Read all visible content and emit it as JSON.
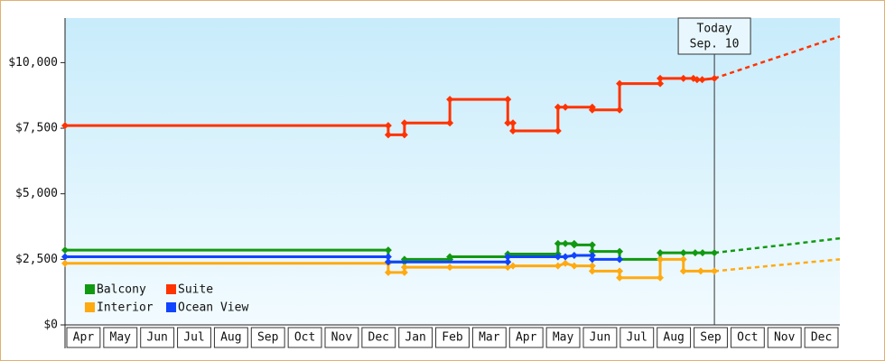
{
  "chart_data": {
    "type": "line",
    "xlim": [
      0,
      21
    ],
    "xticks": [
      {
        "value": 0.5,
        "label": "Apr"
      },
      {
        "value": 1.5,
        "label": "May"
      },
      {
        "value": 2.5,
        "label": "Jun"
      },
      {
        "value": 3.5,
        "label": "Jul"
      },
      {
        "value": 4.5,
        "label": "Aug"
      },
      {
        "value": 5.5,
        "label": "Sep"
      },
      {
        "value": 6.5,
        "label": "Oct"
      },
      {
        "value": 7.5,
        "label": "Nov"
      },
      {
        "value": 8.5,
        "label": "Dec"
      },
      {
        "value": 9.5,
        "label": "Jan"
      },
      {
        "value": 10.5,
        "label": "Feb"
      },
      {
        "value": 11.5,
        "label": "Mar"
      },
      {
        "value": 12.5,
        "label": "Apr"
      },
      {
        "value": 13.5,
        "label": "May"
      },
      {
        "value": 14.5,
        "label": "Jun"
      },
      {
        "value": 15.5,
        "label": "Jul"
      },
      {
        "value": 16.5,
        "label": "Aug"
      },
      {
        "value": 17.5,
        "label": "Sep"
      },
      {
        "value": 18.5,
        "label": "Oct"
      },
      {
        "value": 19.5,
        "label": "Nov"
      },
      {
        "value": 20.5,
        "label": "Dec"
      }
    ],
    "ylim": [
      0,
      11700
    ],
    "yticks": [
      {
        "value": 0,
        "label": "$0"
      },
      {
        "value": 2500,
        "label": "$2,500"
      },
      {
        "value": 5000,
        "label": "$5,000"
      },
      {
        "value": 7500,
        "label": "$7,500"
      },
      {
        "value": 10000,
        "label": "$10,000"
      }
    ],
    "legend": "lower left",
    "annotation": {
      "text": [
        "Today",
        "Sep. 10"
      ],
      "x": 17.6
    },
    "series": [
      {
        "name": "Balcony",
        "color": "#119911",
        "x": [
          0,
          8.76,
          8.76,
          9.2,
          9.2,
          10.43,
          10.43,
          12.0,
          12.0,
          13.36,
          13.36,
          13.56,
          13.8,
          13.8,
          14.29,
          14.29,
          15.03,
          15.03,
          16.13,
          16.13,
          16.76,
          17.08,
          17.28,
          17.6
        ],
        "values": [
          2850,
          2850,
          2400,
          2400,
          2500,
          2500,
          2600,
          2600,
          2700,
          2700,
          3100,
          3100,
          3100,
          3050,
          3050,
          2800,
          2800,
          2500,
          2500,
          2750,
          2750,
          2750,
          2750,
          2750
        ],
        "forecast": {
          "x": [
            17.6,
            19.5,
            21
          ],
          "values": [
            2750,
            3050,
            3300
          ]
        }
      },
      {
        "name": "Suite",
        "color": "#ff3300",
        "x": [
          0,
          8.76,
          8.76,
          9.2,
          9.2,
          10.43,
          10.43,
          12.0,
          12.0,
          12.14,
          12.14,
          13.36,
          13.36,
          13.56,
          14.29,
          14.29,
          15.03,
          15.03,
          16.13,
          16.13,
          16.76,
          17.03,
          17.13,
          17.27,
          17.6
        ],
        "values": [
          7600,
          7600,
          7250,
          7250,
          7700,
          7700,
          8600,
          8600,
          7700,
          7700,
          7400,
          7400,
          8300,
          8300,
          8300,
          8200,
          8200,
          9200,
          9200,
          9400,
          9400,
          9400,
          9350,
          9350,
          9400
        ],
        "forecast": {
          "x": [
            17.6,
            21
          ],
          "values": [
            9400,
            11000
          ]
        }
      },
      {
        "name": "Interior",
        "color": "#ffaa11",
        "x": [
          0,
          8.76,
          8.76,
          9.2,
          9.2,
          10.43,
          12.0,
          12.14,
          13.36,
          13.56,
          13.8,
          14.29,
          14.29,
          15.03,
          15.03,
          16.13,
          16.13,
          16.76,
          16.76,
          17.23,
          17.6
        ],
        "values": [
          2350,
          2350,
          2000,
          2000,
          2200,
          2200,
          2200,
          2250,
          2250,
          2350,
          2250,
          2250,
          2050,
          2050,
          1800,
          1800,
          2500,
          2500,
          2050,
          2050,
          2050
        ],
        "forecast": {
          "x": [
            17.6,
            21
          ],
          "values": [
            2050,
            2500
          ]
        }
      },
      {
        "name": "Ocean View",
        "color": "#1144ff",
        "x": [
          0,
          8.76,
          8.76,
          12.0,
          12.0,
          13.36,
          13.56,
          13.8,
          14.29,
          14.29,
          15.03
        ],
        "values": [
          2600,
          2600,
          2400,
          2400,
          2600,
          2600,
          2600,
          2650,
          2650,
          2500,
          2500
        ]
      }
    ]
  }
}
